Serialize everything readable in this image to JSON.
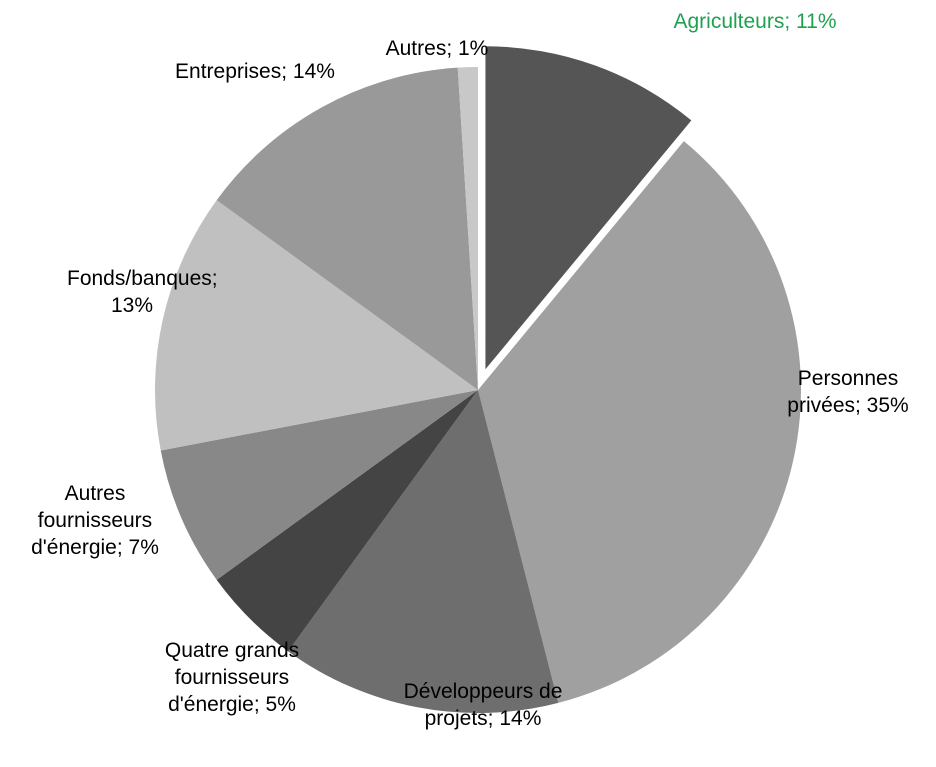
{
  "chart_data": {
    "type": "pie",
    "categories": [
      "Agriculteurs;",
      "Personnes privées;",
      "Développeurs de projets;",
      "Quatre grands fournisseurs d'énergie;",
      "Autres fournisseurs d'énergie;",
      "Fonds/banques;",
      "Entreprises;",
      "Autres;"
    ],
    "values": [
      11,
      35,
      14,
      5,
      7,
      13,
      14,
      1
    ],
    "value_labels": [
      "11%",
      "35%",
      "14%",
      "5%",
      "7%",
      "13%",
      "14%",
      "1%"
    ],
    "colors": [
      "#555555",
      "#a0a0a0",
      "#6e6e6e",
      "#444444",
      "#888888",
      "#c0c0c0",
      "#999999",
      "#c8c8c8"
    ],
    "exploded": [
      0
    ],
    "highlight_color": "#1fa150",
    "start_angle": 90,
    "direction": "clockwise"
  }
}
